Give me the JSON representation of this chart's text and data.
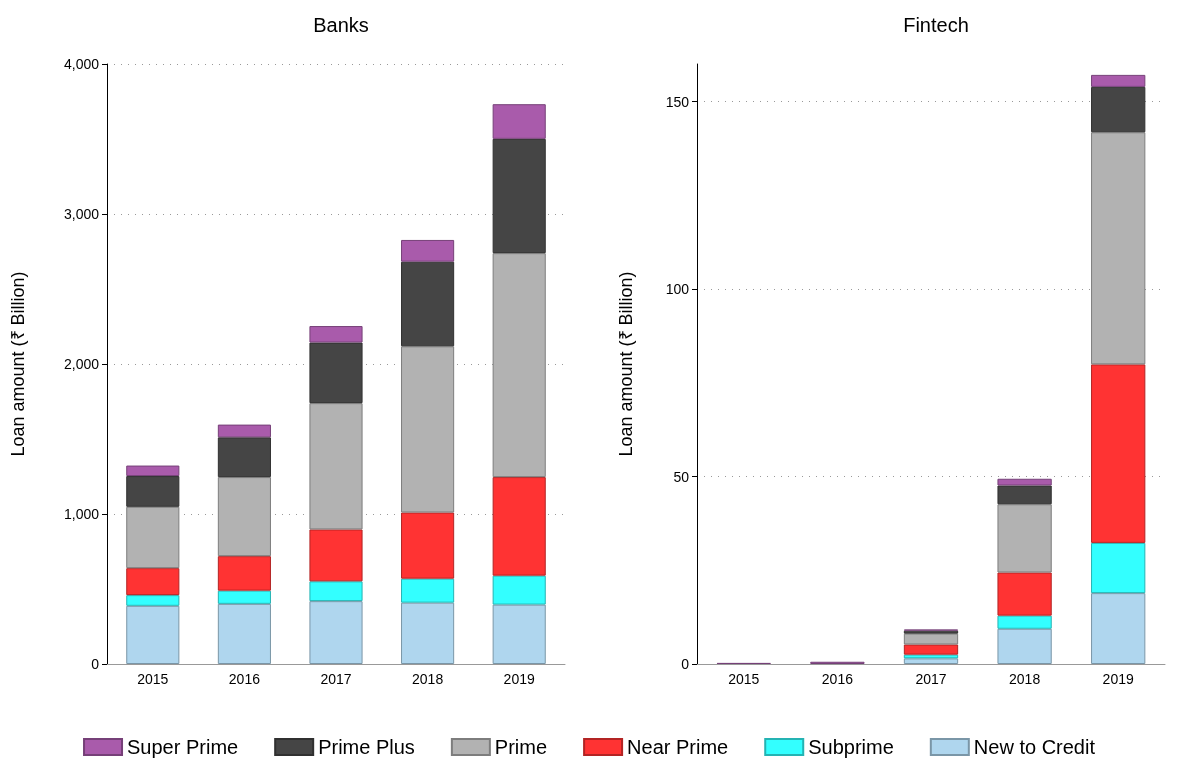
{
  "chart_data": [
    {
      "type": "bar",
      "title": "Banks",
      "ylabel": "Loan amount (₹ Billion)",
      "categories": [
        "2015",
        "2016",
        "2017",
        "2018",
        "2019"
      ],
      "stacked": true,
      "grid": "y",
      "legend": "bottom",
      "ylim": [
        0,
        4000
      ],
      "yticks": [
        0,
        {
          "value": 1000,
          "label": "1,000"
        },
        {
          "value": 2000,
          "label": "2,000"
        },
        {
          "value": 3000,
          "label": "3,000"
        },
        {
          "value": 4000,
          "label": "4,000"
        }
      ],
      "series": [
        {
          "name": "New to Credit",
          "color": "#afd6ee",
          "values": [
            388,
            401,
            419,
            409,
            396
          ]
        },
        {
          "name": "Subprime",
          "color": "#33ffff",
          "values": [
            71,
            88,
            132,
            160,
            193
          ]
        },
        {
          "name": "Near Prime",
          "color": "#ff3333",
          "values": [
            180,
            230,
            346,
            441,
            657
          ]
        },
        {
          "name": "Prime",
          "color": "#b2b2b2",
          "values": [
            409,
            527,
            842,
            1108,
            1493
          ]
        },
        {
          "name": "Prime Plus",
          "color": "#454545",
          "values": [
            205,
            265,
            404,
            564,
            762
          ]
        },
        {
          "name": "Super Prime",
          "color": "#a95bab",
          "values": [
            70,
            85,
            110,
            145,
            231
          ]
        }
      ]
    },
    {
      "type": "bar",
      "title": "Fintech",
      "ylabel": "Loan amount (₹ Billion)",
      "categories": [
        "2015",
        "2016",
        "2017",
        "2018",
        "2019"
      ],
      "stacked": true,
      "grid": "y",
      "legend": "bottom",
      "ylim": [
        0,
        160
      ],
      "yticks": [
        0,
        50,
        100,
        150
      ],
      "series": [
        {
          "name": "New to Credit",
          "color": "#afd6ee",
          "values": [
            null,
            null,
            1.5,
            9.4,
            18.9
          ]
        },
        {
          "name": "Subprime",
          "color": "#33ffff",
          "values": [
            null,
            null,
            1.0,
            3.5,
            13.4
          ]
        },
        {
          "name": "Near Prime",
          "color": "#ff3333",
          "values": [
            null,
            null,
            2.7,
            11.5,
            47.6
          ]
        },
        {
          "name": "Prime",
          "color": "#b2b2b2",
          "values": [
            null,
            null,
            2.9,
            18.2,
            61.9
          ]
        },
        {
          "name": "Prime Plus",
          "color": "#454545",
          "values": [
            null,
            null,
            0.8,
            5.0,
            12.1
          ]
        },
        {
          "name": "Super Prime",
          "color": "#a95bab",
          "values": [
            0.3,
            0.6,
            0.3,
            1.8,
            3.2
          ]
        }
      ]
    }
  ]
}
